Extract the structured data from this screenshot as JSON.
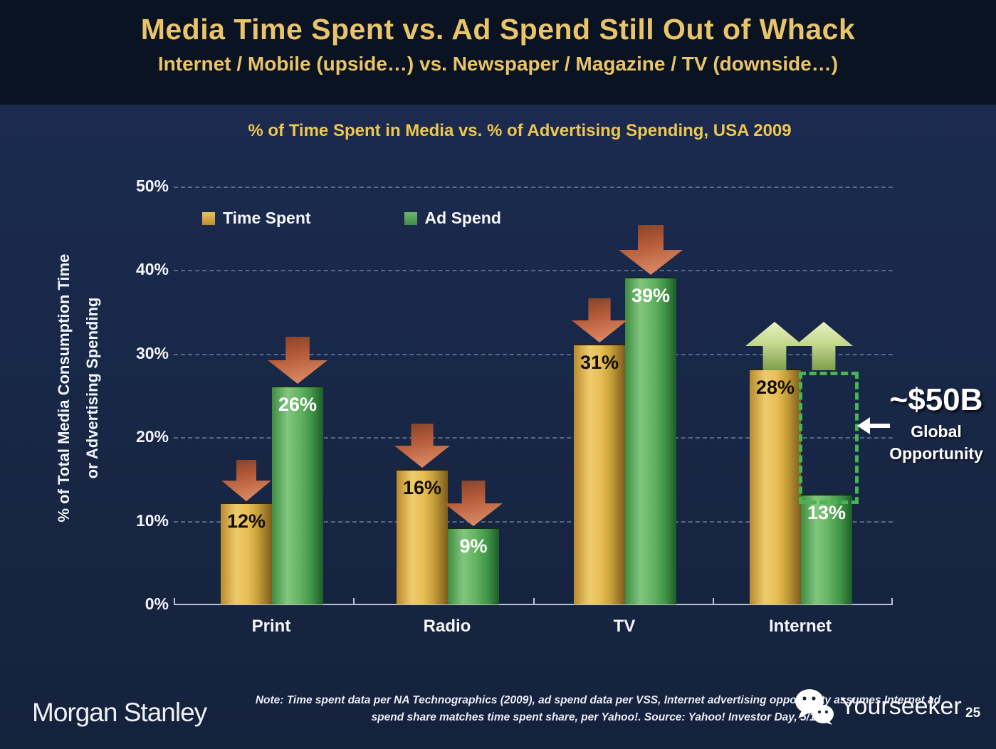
{
  "header": {
    "title": "Media Time Spent vs. Ad Spend Still Out of Whack",
    "subtitle": "Internet / Mobile (upside…) vs. Newspaper / Magazine / TV (downside…)"
  },
  "chart_data": {
    "type": "bar",
    "title": "% of Time Spent in Media vs. % of Advertising Spending, USA 2009",
    "ylabel_line1": "% of Total Media Consumption Time",
    "ylabel_line2": "or Advertising Spending",
    "categories": [
      "Print",
      "Radio",
      "TV",
      "Internet"
    ],
    "series": [
      {
        "name": "Time Spent",
        "color": "#d9ab42",
        "values": [
          12,
          16,
          31,
          28
        ],
        "labels": [
          "12%",
          "16%",
          "31%",
          "28%"
        ]
      },
      {
        "name": "Ad Spend",
        "color": "#58a558",
        "values": [
          26,
          9,
          39,
          13
        ],
        "labels": [
          "26%",
          "9%",
          "39%",
          "13%"
        ]
      }
    ],
    "ylim": [
      0,
      50
    ],
    "yticks": [
      "50%",
      "40%",
      "30%",
      "20%",
      "10%",
      "0%"
    ],
    "grid": "dashed-horizontal",
    "legend_position": "top-left-inside",
    "trend_arrows": {
      "Print": "down",
      "Radio": "down",
      "TV": "down",
      "Internet": "up"
    }
  },
  "annotation": {
    "value": "~$50B",
    "line1": "Global",
    "line2": "Opportunity"
  },
  "footer": {
    "brand": "Morgan Stanley",
    "note_line1": "Note: Time spent data per NA Technographics (2009), ad spend data per VSS, Internet advertising opportunity assumes Internet ad",
    "note_line2": "spend share matches time spent share, per Yahoo!. Source: Yahoo! Investor Day, 5/10.",
    "watermark": "Yourseeker",
    "page_number": "25"
  }
}
